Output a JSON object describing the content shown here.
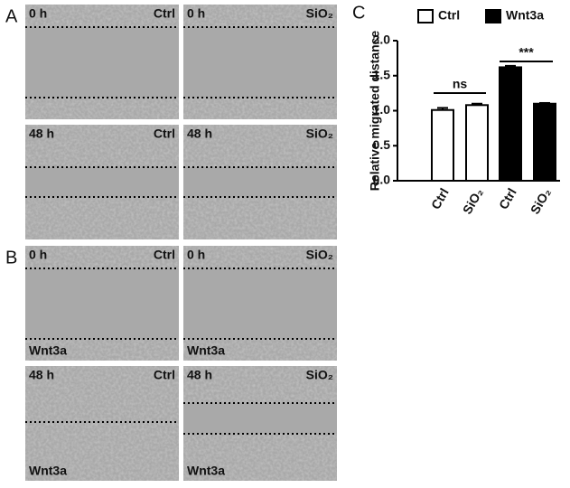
{
  "panels": [
    {
      "letter": "A",
      "images": [
        {
          "time": "0 h",
          "condition": "Ctrl"
        },
        {
          "time": "0 h",
          "condition": "SiO₂"
        },
        {
          "time": "48 h",
          "condition": "Ctrl"
        },
        {
          "time": "48 h",
          "condition": "SiO₂"
        }
      ]
    },
    {
      "letter": "B",
      "images": [
        {
          "time": "0 h",
          "condition": "Ctrl",
          "cells": "Wnt3a"
        },
        {
          "time": "0 h",
          "condition": "SiO₂",
          "cells": "Wnt3a"
        },
        {
          "time": "48 h",
          "condition": "Ctrl",
          "cells": "Wnt3a"
        },
        {
          "time": "48 h",
          "condition": "SiO₂",
          "cells": "Wnt3a"
        }
      ]
    }
  ],
  "chart_data": {
    "type": "bar",
    "letter": "C",
    "y_label": "Relative migrated distance",
    "categories": [
      "Ctrl",
      "SiO₂",
      "Ctrl",
      "SiO₂"
    ],
    "series": [
      {
        "name": "Ctrl",
        "color": "#ffffff",
        "values": [
          1.01,
          1.08,
          null,
          null
        ],
        "errors": [
          0.03,
          0.02,
          null,
          null
        ]
      },
      {
        "name": "Wnt3a",
        "color": "#000000",
        "values": [
          null,
          null,
          1.62,
          1.1
        ],
        "errors": [
          null,
          null,
          0.02,
          0.01
        ]
      }
    ],
    "ylim": [
      0,
      2.0
    ],
    "yticks": [
      {
        "value": 0,
        "label": "0.0"
      },
      0.5,
      {
        "value": 1,
        "label": "1.0"
      },
      1.5,
      {
        "value": 2,
        "label": "2.0"
      }
    ],
    "annotations": [
      "ns",
      "***"
    ]
  }
}
